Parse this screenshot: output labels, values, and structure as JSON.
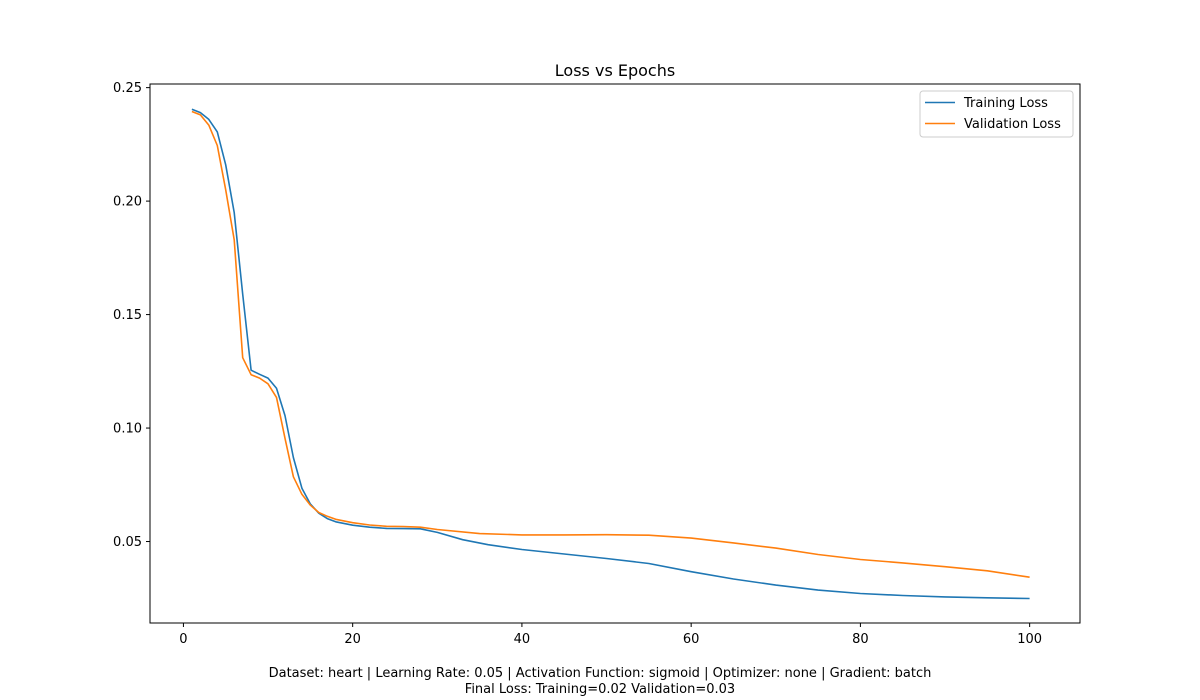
{
  "chart_data": {
    "type": "line",
    "title": "Loss vs Epochs",
    "xlabel": "",
    "ylabel": "",
    "xlim": [
      -3.95,
      105.95
    ],
    "ylim": [
      0.0141,
      0.2516
    ],
    "xticks": [
      0,
      20,
      40,
      60,
      80,
      100
    ],
    "xtick_labels": [
      "0",
      "20",
      "40",
      "60",
      "80",
      "100"
    ],
    "yticks": [
      0.05,
      0.1,
      0.15,
      0.2,
      0.25
    ],
    "ytick_labels": [
      "0.05",
      "0.10",
      "0.15",
      "0.20",
      "0.25"
    ],
    "grid": false,
    "legend_position": "top-right",
    "series": [
      {
        "name": "Training Loss",
        "color": "#1f77b4",
        "x": [
          1,
          2,
          3,
          4,
          5,
          6,
          7,
          8,
          9,
          10,
          11,
          12,
          13,
          14,
          15,
          16,
          17,
          18,
          20,
          22,
          24,
          26,
          28,
          30,
          33,
          36,
          40,
          45,
          50,
          55,
          60,
          65,
          70,
          75,
          80,
          85,
          90,
          95,
          100
        ],
        "y": [
          0.2405,
          0.239,
          0.236,
          0.2305,
          0.216,
          0.195,
          0.159,
          0.1255,
          0.1237,
          0.122,
          0.1175,
          0.1055,
          0.087,
          0.0735,
          0.0665,
          0.0625,
          0.0601,
          0.0587,
          0.0572,
          0.0563,
          0.0558,
          0.0557,
          0.0556,
          0.054,
          0.0508,
          0.0486,
          0.0465,
          0.0445,
          0.0425,
          0.0403,
          0.0367,
          0.0335,
          0.0308,
          0.0286,
          0.0271,
          0.0262,
          0.0256,
          0.0252,
          0.0249
        ]
      },
      {
        "name": "Validation Loss",
        "color": "#ff7f0e",
        "x": [
          1,
          2,
          3,
          4,
          5,
          6,
          7,
          8,
          9,
          10,
          11,
          12,
          13,
          14,
          15,
          16,
          17,
          18,
          20,
          22,
          24,
          26,
          28,
          30,
          35,
          40,
          45,
          50,
          55,
          60,
          65,
          70,
          75,
          80,
          85,
          90,
          95,
          100
        ],
        "y": [
          0.2395,
          0.238,
          0.2335,
          0.2245,
          0.205,
          0.183,
          0.131,
          0.1235,
          0.122,
          0.1195,
          0.1135,
          0.0955,
          0.0785,
          0.0708,
          0.066,
          0.0628,
          0.0611,
          0.0598,
          0.0583,
          0.0573,
          0.0567,
          0.0566,
          0.0563,
          0.0553,
          0.0535,
          0.0529,
          0.0529,
          0.053,
          0.0528,
          0.0515,
          0.0494,
          0.0471,
          0.0443,
          0.0421,
          0.0406,
          0.0389,
          0.0371,
          0.0343
        ]
      }
    ]
  },
  "footer": {
    "line1": "Dataset: heart | Learning Rate: 0.05 | Activation Function: sigmoid | Optimizer: none | Gradient: batch",
    "line2": "Final Loss: Training=0.02 Validation=0.03"
  }
}
